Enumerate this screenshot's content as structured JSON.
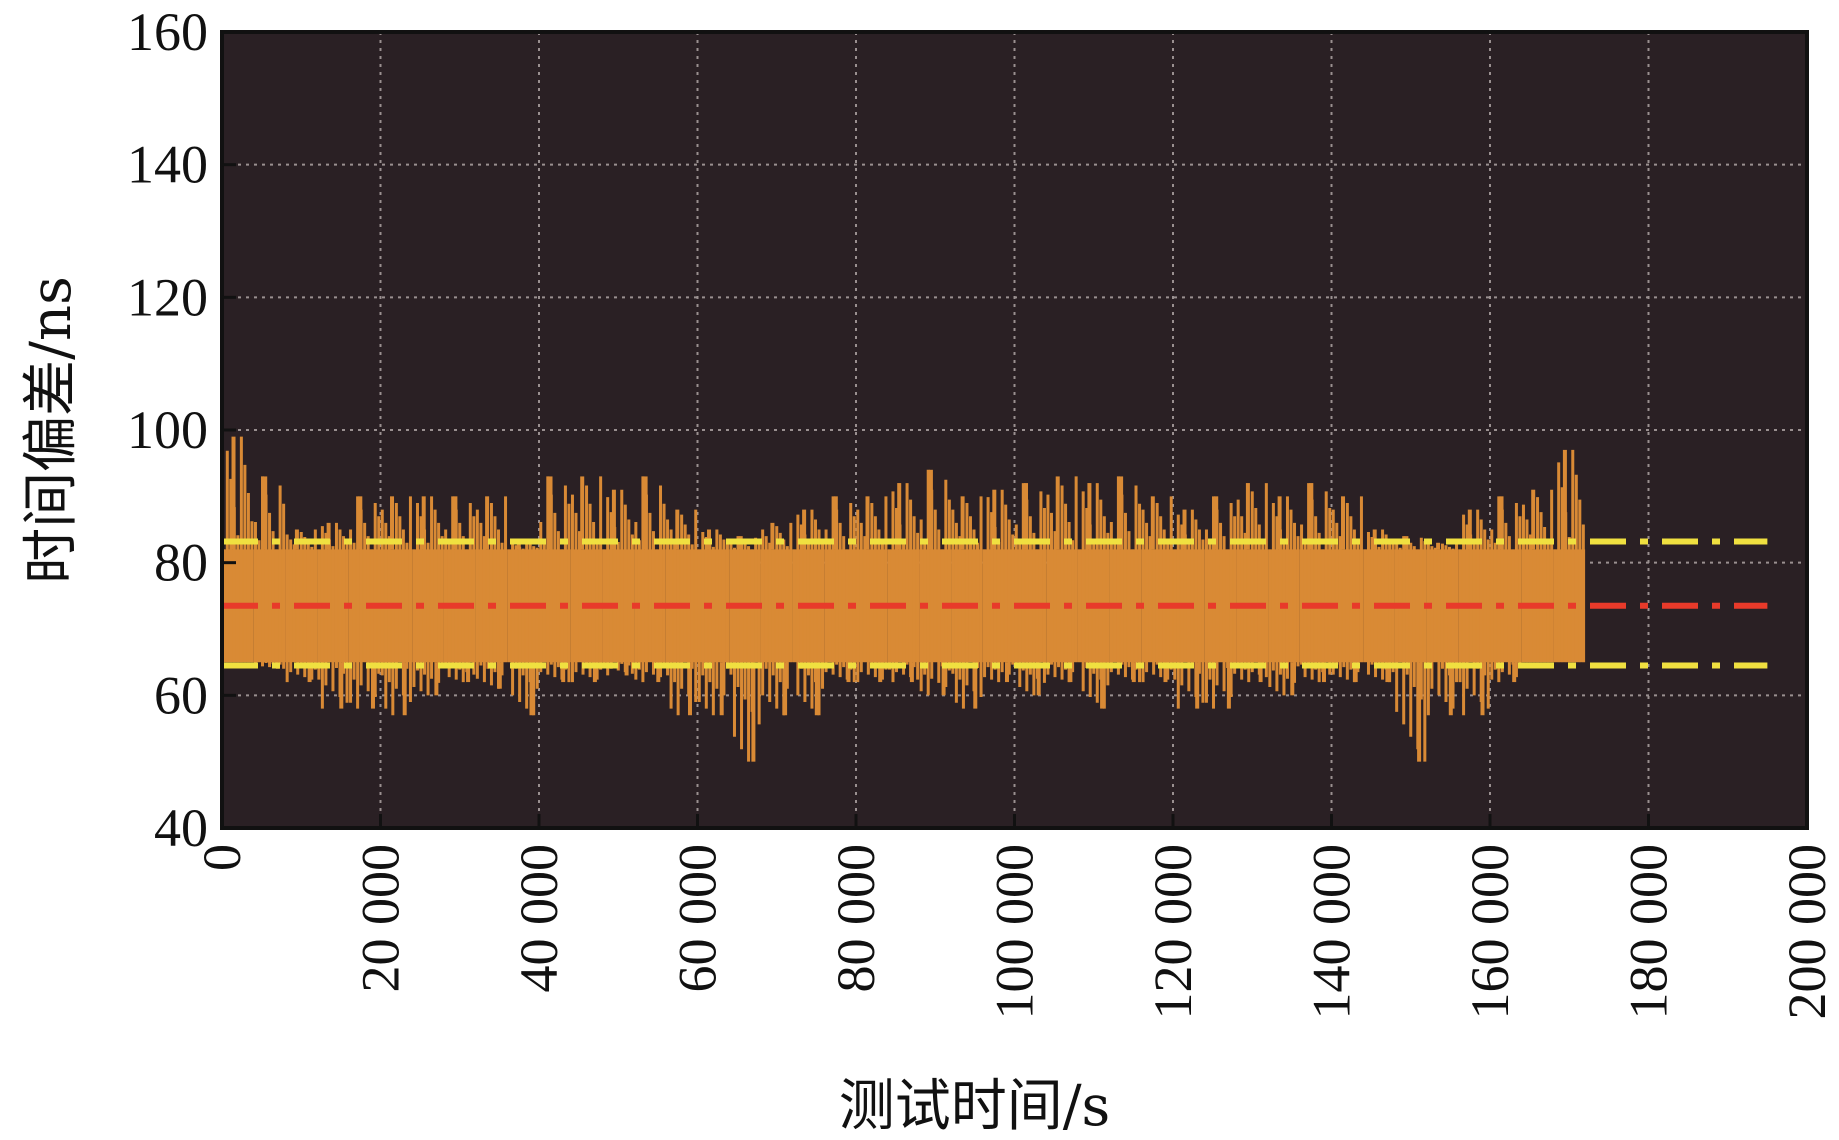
{
  "chart_data": {
    "type": "area",
    "title": "",
    "xlabel": "测试时间/s",
    "ylabel": "时间偏差/ns",
    "xlim": [
      0,
      200000
    ],
    "ylim": [
      40,
      160
    ],
    "xticks": [
      0,
      20000,
      40000,
      60000,
      80000,
      100000,
      120000,
      140000,
      160000,
      180000,
      200000
    ],
    "xtick_labels": [
      "0",
      "20 000",
      "40 000",
      "60 000",
      "80 000",
      "100 000",
      "120 000",
      "140 000",
      "160 000",
      "180 000",
      "200 000"
    ],
    "yticks": [
      40,
      60,
      80,
      100,
      120,
      140,
      160
    ],
    "ytick_labels": [
      "40",
      "60",
      "80",
      "100",
      "120",
      "140",
      "160"
    ],
    "grid": true,
    "background_color": "#2a2024",
    "series": [
      {
        "color": "#d98a35",
        "segment_width": 4000,
        "x": [
          0,
          4000,
          8000,
          12000,
          16000,
          20000,
          24000,
          28000,
          32000,
          36000,
          40000,
          44000,
          48000,
          52000,
          56000,
          60000,
          64000,
          68000,
          72000,
          76000,
          80000,
          84000,
          88000,
          92000,
          96000,
          100000,
          104000,
          108000,
          112000,
          116000,
          120000,
          124000,
          128000,
          132000,
          136000,
          140000,
          144000,
          148000,
          152000,
          156000,
          160000,
          164000,
          168000
        ],
        "low": [
          65,
          64,
          62,
          58,
          58,
          57,
          60,
          62,
          61,
          57,
          62,
          62,
          63,
          62,
          57,
          57,
          50,
          57,
          57,
          62,
          62,
          62,
          60,
          58,
          62,
          60,
          62,
          58,
          62,
          62,
          58,
          58,
          62,
          60,
          62,
          62,
          62,
          50,
          57,
          57,
          62,
          65,
          65
        ],
        "high": [
          99,
          93,
          85,
          86,
          90,
          90,
          90,
          90,
          90,
          83,
          93,
          93,
          91,
          93,
          88,
          85,
          84,
          86,
          88,
          90,
          90,
          92,
          94,
          90,
          91,
          92,
          93,
          92,
          93,
          90,
          88,
          90,
          92,
          90,
          92,
          90,
          85,
          84,
          83,
          88,
          90,
          91,
          97
        ],
        "core_low": 65,
        "core_high": 82
      }
    ],
    "reference_lines": [
      {
        "y": 83.2,
        "color": "#f0e040",
        "style": "dash-dot",
        "x_end": 195000
      },
      {
        "y": 73.5,
        "color": "#e83a2a",
        "style": "dash-dot",
        "x_end": 195000
      },
      {
        "y": 64.5,
        "color": "#f0e040",
        "style": "dash-dot",
        "x_end": 195000
      }
    ]
  }
}
